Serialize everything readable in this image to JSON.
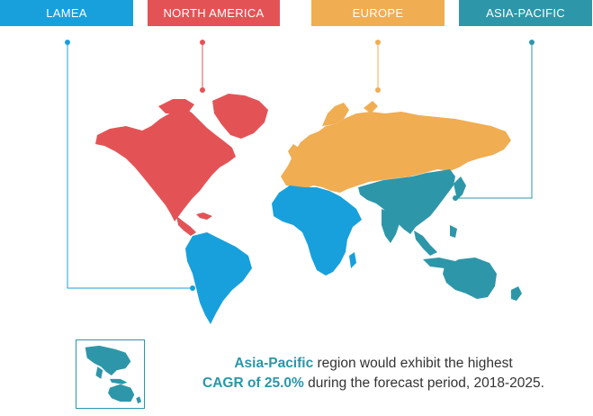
{
  "regions": [
    {
      "key": "lamea",
      "label": "LAMEA",
      "color": "#17a0dc"
    },
    {
      "key": "north_america",
      "label": "NORTH AMERICA",
      "color": "#e35356"
    },
    {
      "key": "europe",
      "label": "EUROPE",
      "color": "#f0ad52"
    },
    {
      "key": "asia_pacific",
      "label": "ASIA-PACIFIC",
      "color": "#2e96a9"
    }
  ],
  "callout": {
    "part1": "Asia-Pacific",
    "part2": " region would exhibit the highest",
    "part3": "CAGR of 25.0%",
    "part4": " during the forecast period, 2018-2025."
  }
}
